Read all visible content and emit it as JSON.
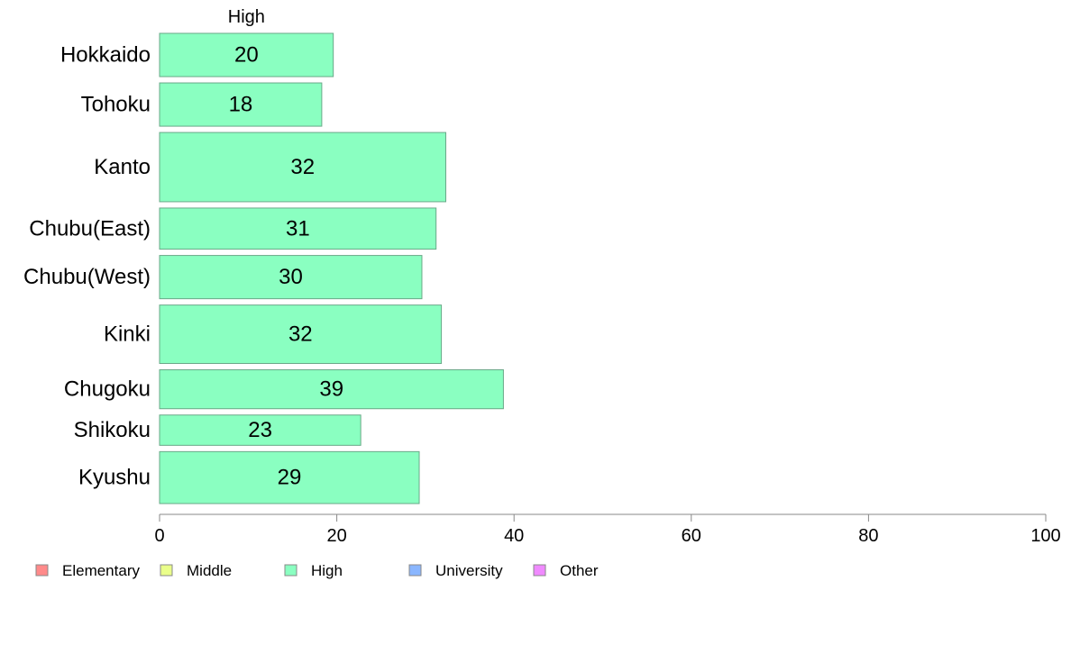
{
  "chart_data": {
    "type": "bar",
    "orientation": "horizontal",
    "segment_label": "High",
    "categories": [
      "Hokkaido",
      "Tohoku",
      "Kanto",
      "Chubu(East)",
      "Chubu(West)",
      "Kinki",
      "Chugoku",
      "Shikoku",
      "Kyushu"
    ],
    "series": [
      {
        "name": "High",
        "values": [
          20,
          18,
          32,
          31,
          30,
          32,
          39,
          23,
          29
        ]
      }
    ],
    "bar_value_extents": [
      19.6,
      18.3,
      32.3,
      31.2,
      29.6,
      31.8,
      38.8,
      22.7,
      29.3
    ],
    "relative_widths": [
      2,
      2,
      3.2,
      1.9,
      2,
      2.7,
      1.8,
      1.4,
      2.4
    ],
    "xlim": [
      0,
      100
    ],
    "xticks": [
      0,
      20,
      40,
      60,
      80,
      100
    ],
    "grid": false,
    "legend": {
      "position": "bottom-left",
      "items": [
        {
          "label": "Elementary",
          "color": "#ff8a8a"
        },
        {
          "label": "Middle",
          "color": "#eaff8a"
        },
        {
          "label": "High",
          "color": "#8affc1"
        },
        {
          "label": "University",
          "color": "#8ab6ff"
        },
        {
          "label": "Other",
          "color": "#f08aff"
        }
      ]
    },
    "bar_color": "#8affc1",
    "bar_stroke": "#6aa888"
  }
}
